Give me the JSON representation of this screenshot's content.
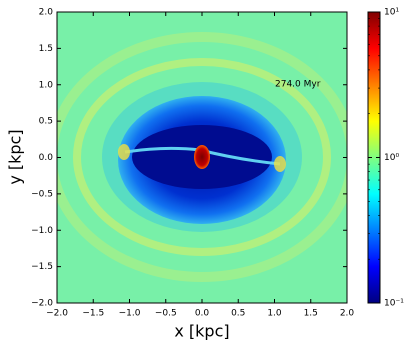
{
  "chart_data": {
    "type": "image",
    "annotation": "274.0 Myr",
    "xlabel": "x [kpc]",
    "ylabel": "y [kpc]",
    "xlim": [
      -2,
      2
    ],
    "ylim": [
      -2,
      2
    ],
    "xticks": [
      {
        "value": -2,
        "label": "−2.0"
      },
      {
        "value": -1.5,
        "label": "−1.5"
      },
      {
        "value": -1,
        "label": "−1.0"
      },
      {
        "value": -0.5,
        "label": "−0.5"
      },
      {
        "value": 0,
        "label": "0.0"
      },
      0.5,
      {
        "value": 1,
        "label": "1.0"
      },
      1.5,
      {
        "value": 2,
        "label": "2.0"
      }
    ],
    "yticks": [
      {
        "value": -2,
        "label": "−2.0"
      },
      {
        "value": -1.5,
        "label": "−1.5"
      },
      {
        "value": -1,
        "label": "−1.0"
      },
      {
        "value": -0.5,
        "label": "−0.5"
      },
      {
        "value": 0,
        "label": "0.0"
      },
      0.5,
      {
        "value": 1,
        "label": "1.0"
      },
      1.5,
      {
        "value": 2,
        "label": "2.0"
      }
    ],
    "colormap": "jet",
    "color_scale": "log",
    "clim": [
      0.1,
      10
    ],
    "cticks": [
      {
        "value": 0.1,
        "label": "10⁻¹"
      },
      {
        "value": 1,
        "label": "10⁰"
      },
      {
        "value": 10,
        "label": "10¹"
      }
    ]
  }
}
